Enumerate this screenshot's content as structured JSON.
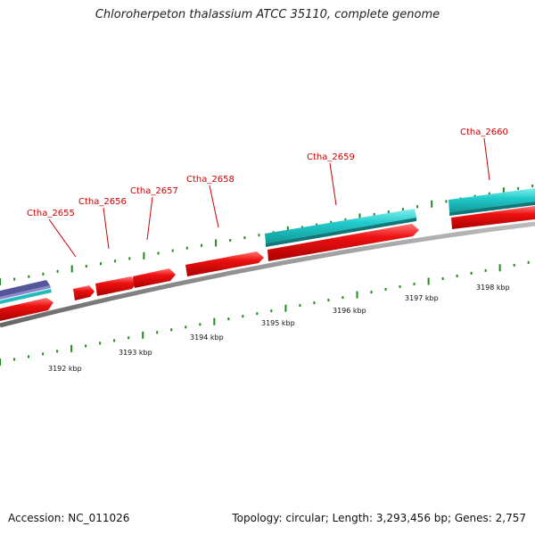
{
  "title": "Chloroherpeton thalassium ATCC 35110, complete genome",
  "footer": {
    "accession": "Accession: NC_011026",
    "summary": "Topology: circular; Length: 3,293,456 bp; Genes: 2,757"
  },
  "colors": {
    "gene_red": "#ee1111",
    "gene_cyan": "#22cccc",
    "backbone": "#888888",
    "tick_green": "#228822",
    "label_red": "#cc0000"
  },
  "gene_labels": [
    "Ctha_2655",
    "Ctha_2656",
    "Ctha_2657",
    "Ctha_2658",
    "Ctha_2659",
    "Ctha_2660"
  ],
  "kbp_labels": [
    "3192 kbp",
    "3193 kbp",
    "3194 kbp",
    "3195 kbp",
    "3196 kbp",
    "3197 kbp",
    "3198 kbp"
  ]
}
